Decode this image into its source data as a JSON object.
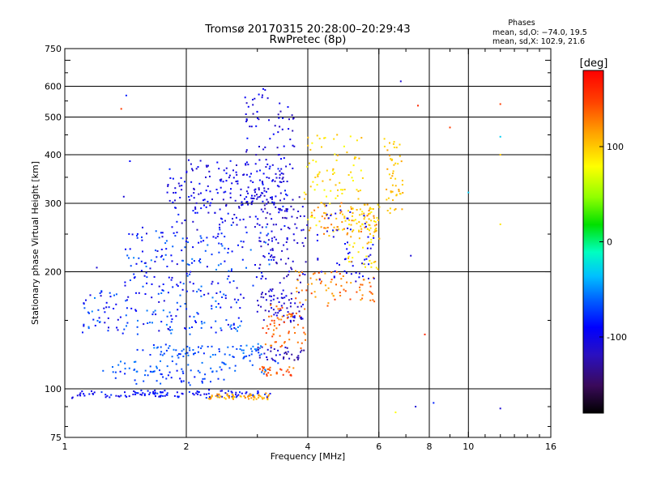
{
  "chart_data": {
    "type": "scatter",
    "title": "Tromsø 20170315 20:28:00–20:29:43",
    "subtitle": "RwPretec (8p)",
    "xlabel": "Frequency [MHz]",
    "ylabel": "Stationary phase Virtual Height [km]",
    "x_scale": "log",
    "y_scale": "log",
    "xlim": [
      1,
      16
    ],
    "ylim": [
      75,
      750
    ],
    "x_ticks": [
      {
        "value": 1,
        "label": "1"
      },
      {
        "value": 2,
        "label": "2"
      },
      {
        "value": 4,
        "label": "4"
      },
      {
        "value": 6,
        "label": "6"
      },
      {
        "value": 8,
        "label": "8"
      },
      {
        "value": 10,
        "label": "10"
      },
      {
        "value": 16,
        "label": "16"
      }
    ],
    "x_grid": [
      2,
      4,
      6,
      8,
      10
    ],
    "y_ticks": [
      {
        "value": 75,
        "label": "75"
      },
      {
        "value": 100,
        "label": "100"
      },
      {
        "value": 200,
        "label": "200"
      },
      {
        "value": 300,
        "label": "300"
      },
      {
        "value": 400,
        "label": "400"
      },
      {
        "value": 500,
        "label": "500"
      },
      {
        "value": 600,
        "label": "600"
      },
      {
        "value": 750,
        "label": "750"
      }
    ],
    "y_grid": [
      100,
      200,
      300,
      400,
      500,
      600
    ],
    "grid": true,
    "stats": {
      "heading": "Phases",
      "line_o": "mean, sd,O: −74.0, 19.5",
      "line_x": "mean, sd,X: 102.9, 21.6"
    },
    "colorbar": {
      "label": "[deg]",
      "range": [
        -180,
        180
      ],
      "ticks": [
        {
          "value": 100,
          "label": "100"
        },
        {
          "value": 0,
          "label": "0"
        },
        {
          "value": -100,
          "label": "-100"
        }
      ]
    },
    "traces": [
      {
        "x0": 1.03,
        "x1": 3.3,
        "y0": 95,
        "y1": 99,
        "spread": 0.015,
        "n": 120,
        "phase": [
          -110,
          -70
        ]
      },
      {
        "x0": 2.25,
        "x1": 3.25,
        "y0": 94,
        "y1": 97,
        "spread": 0.012,
        "n": 60,
        "phase": [
          95,
          125
        ]
      },
      {
        "x0": 1.3,
        "x1": 2.5,
        "y0": 103,
        "y1": 112,
        "spread": 0.02,
        "n": 45,
        "phase": [
          -90,
          -60
        ]
      },
      {
        "x0": 1.5,
        "x1": 3.1,
        "y0": 120,
        "y1": 130,
        "spread": 0.025,
        "n": 80,
        "phase": [
          -80,
          -50
        ]
      },
      {
        "x0": 1.2,
        "x1": 3.5,
        "y0": 110,
        "y1": 118,
        "spread": 0.02,
        "n": 45,
        "phase": [
          -70,
          -50
        ]
      },
      {
        "x0": 1.1,
        "x1": 2.8,
        "y0": 140,
        "y1": 180,
        "spread": 0.05,
        "n": 160,
        "phase": [
          -110,
          -50
        ]
      },
      {
        "x0": 1.4,
        "x1": 3.3,
        "y0": 180,
        "y1": 260,
        "spread": 0.06,
        "n": 170,
        "phase": [
          -110,
          -50
        ]
      },
      {
        "x0": 1.8,
        "x1": 3.6,
        "y0": 260,
        "y1": 380,
        "spread": 0.05,
        "n": 220,
        "phase": [
          -120,
          -80
        ]
      },
      {
        "x0": 2.8,
        "x1": 3.7,
        "y0": 300,
        "y1": 580,
        "spread": 0.05,
        "n": 90,
        "phase": [
          -125,
          -85
        ]
      },
      {
        "x0": 3.0,
        "x1": 3.9,
        "y0": 150,
        "y1": 180,
        "spread": 0.03,
        "n": 70,
        "phase": [
          -130,
          -95
        ]
      },
      {
        "x0": 3.0,
        "x1": 4.0,
        "y0": 190,
        "y1": 310,
        "spread": 0.04,
        "n": 90,
        "phase": [
          -130,
          -100
        ]
      },
      {
        "x0": 3.0,
        "x1": 3.9,
        "y0": 118,
        "y1": 128,
        "spread": 0.02,
        "n": 35,
        "phase": [
          -140,
          -100
        ]
      },
      {
        "x0": 3.05,
        "x1": 3.75,
        "y0": 108,
        "y1": 114,
        "spread": 0.015,
        "n": 30,
        "phase": [
          120,
          160
        ]
      },
      {
        "x0": 3.1,
        "x1": 3.95,
        "y0": 128,
        "y1": 165,
        "spread": 0.03,
        "n": 60,
        "phase": [
          120,
          155
        ]
      },
      {
        "x0": 3.75,
        "x1": 5.9,
        "y0": 165,
        "y1": 200,
        "spread": 0.02,
        "n": 70,
        "phase": [
          110,
          150
        ]
      },
      {
        "x0": 4.0,
        "x1": 6.0,
        "y0": 250,
        "y1": 300,
        "spread": 0.04,
        "n": 90,
        "phase": [
          80,
          140
        ]
      },
      {
        "x0": 3.9,
        "x1": 5.5,
        "y0": 300,
        "y1": 450,
        "spread": 0.04,
        "n": 70,
        "phase": [
          75,
          110
        ]
      },
      {
        "x0": 4.2,
        "x1": 5.9,
        "y0": 190,
        "y1": 300,
        "spread": 0.03,
        "n": 60,
        "phase": [
          -115,
          -80
        ]
      },
      {
        "x0": 5.0,
        "x1": 6.0,
        "y0": 200,
        "y1": 300,
        "spread": 0.03,
        "n": 60,
        "phase": [
          80,
          115
        ]
      },
      {
        "x0": 6.2,
        "x1": 6.9,
        "y0": 280,
        "y1": 440,
        "spread": 0.02,
        "n": 50,
        "phase": [
          90,
          115
        ]
      }
    ],
    "scattered_points": [
      {
        "x": 1.38,
        "y": 525,
        "phase": 150
      },
      {
        "x": 1.42,
        "y": 568,
        "phase": -80
      },
      {
        "x": 1.45,
        "y": 385,
        "phase": -90
      },
      {
        "x": 1.4,
        "y": 312,
        "phase": -110
      },
      {
        "x": 1.2,
        "y": 205,
        "phase": -110
      },
      {
        "x": 6.8,
        "y": 618,
        "phase": -110
      },
      {
        "x": 7.5,
        "y": 535,
        "phase": 160
      },
      {
        "x": 9.0,
        "y": 470,
        "phase": 150
      },
      {
        "x": 12.0,
        "y": 540,
        "phase": 150
      },
      {
        "x": 12.0,
        "y": 445,
        "phase": -30
      },
      {
        "x": 12.0,
        "y": 400,
        "phase": 100
      },
      {
        "x": 12.0,
        "y": 265,
        "phase": 90
      },
      {
        "x": 10.0,
        "y": 320,
        "phase": -30
      },
      {
        "x": 7.2,
        "y": 220,
        "phase": -110
      },
      {
        "x": 7.8,
        "y": 138,
        "phase": 160
      },
      {
        "x": 7.4,
        "y": 90,
        "phase": -110
      },
      {
        "x": 6.6,
        "y": 87,
        "phase": 80
      },
      {
        "x": 12.0,
        "y": 89,
        "phase": -110
      },
      {
        "x": 8.2,
        "y": 92,
        "phase": -80
      }
    ]
  }
}
